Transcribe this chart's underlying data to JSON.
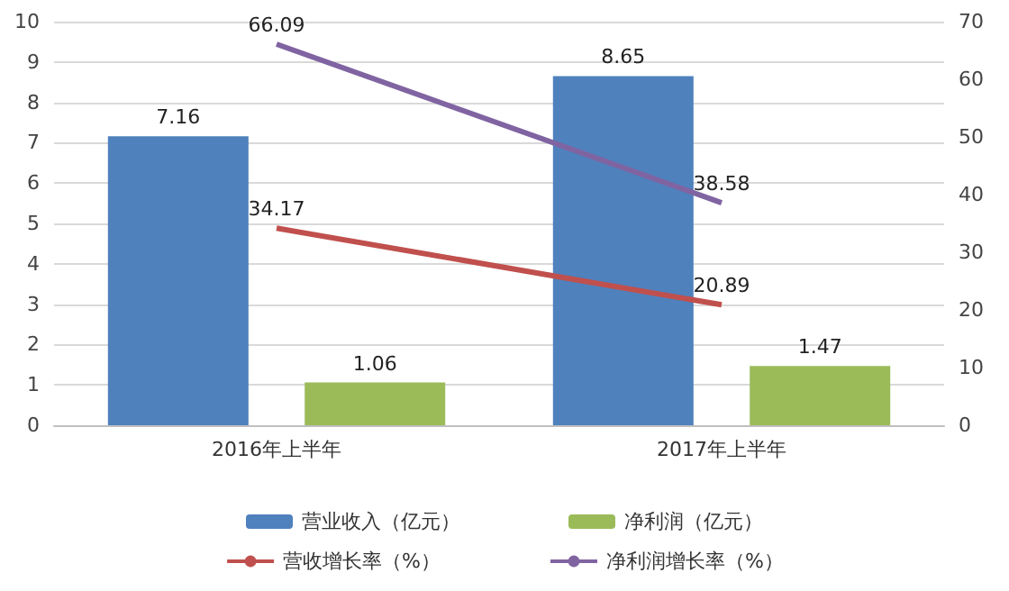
{
  "chart_data": {
    "type": "bar",
    "categories": [
      "2016年上半年",
      "2017年上半年"
    ],
    "series": [
      {
        "name": "营业收入（亿元）",
        "color": "#4f81bd",
        "values": [
          7.16,
          8.65
        ]
      },
      {
        "name": "净利润（亿元）",
        "color": "#9bbb59",
        "values": [
          1.06,
          1.47
        ]
      },
      {
        "name": "营收增长率（%）",
        "color": "#c0504d",
        "values": [
          34.17,
          20.89
        ],
        "type": "line",
        "axis": "y2"
      },
      {
        "name": "净利润增长率（%）",
        "color": "#8064a2",
        "values": [
          66.09,
          38.58
        ],
        "type": "line",
        "axis": "y2"
      }
    ],
    "ylim": [
      0,
      10
    ],
    "yticks": [
      0,
      1,
      2,
      3,
      4,
      5,
      6,
      7,
      8,
      9,
      10
    ],
    "y2lim": [
      0,
      70
    ],
    "y2ticks": [
      0,
      10,
      20,
      30,
      40,
      50,
      60,
      70
    ],
    "data_labels": true,
    "grid": "y",
    "legend": "bottom",
    "marker": "none"
  }
}
